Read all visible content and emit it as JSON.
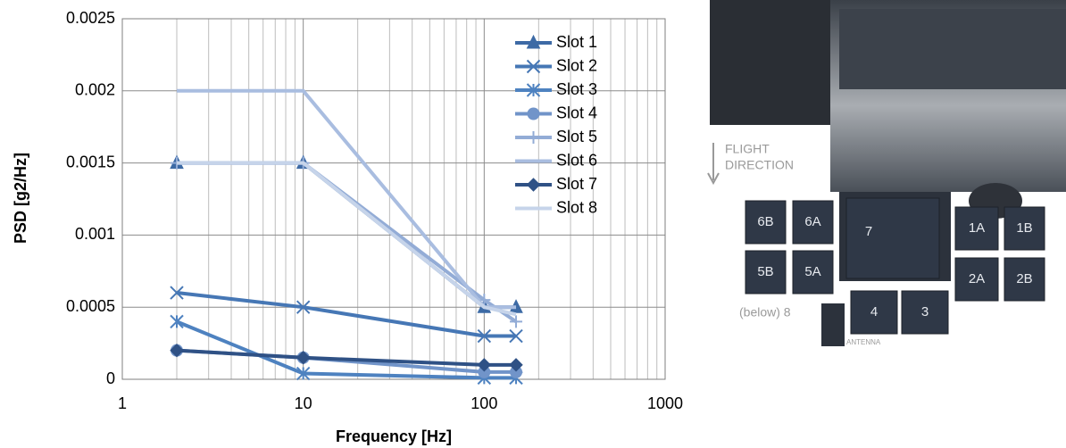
{
  "chart_data": {
    "type": "line",
    "x_label": "Frequency [Hz]",
    "y_label": "PSD [g2/Hz]",
    "x": [
      2,
      10,
      100,
      150
    ],
    "xlim": [
      1,
      1000
    ],
    "xticks": [
      1,
      10,
      100,
      1000
    ],
    "log_x": true,
    "ylim": [
      0,
      0.0025
    ],
    "yticks": [
      0,
      0.0005,
      0.001,
      0.0015,
      0.002,
      0.0025
    ],
    "grid": true,
    "legend": "top-right",
    "series": [
      {
        "name": "Slot 1",
        "color": "#3d6aa5",
        "marker": "triangle",
        "values": [
          0.0015,
          0.0015,
          0.0005,
          0.0005
        ]
      },
      {
        "name": "Slot 2",
        "color": "#4677b5",
        "marker": "x",
        "values": [
          0.0006,
          0.0005,
          0.0003,
          0.0003
        ]
      },
      {
        "name": "Slot 3",
        "color": "#4e82c0",
        "marker": "asterisk",
        "values": [
          0.0004,
          4e-05,
          1e-05,
          1e-05
        ]
      },
      {
        "name": "Slot 4",
        "color": "#7194c9",
        "marker": "circle",
        "values": [
          0.0002,
          0.00015,
          5e-05,
          5e-05
        ]
      },
      {
        "name": "Slot 5",
        "color": "#93acd6",
        "marker": "plus",
        "values": [
          0.0015,
          0.0015,
          0.00055,
          0.0004
        ]
      },
      {
        "name": "Slot 6",
        "color": "#a9bde0",
        "values": [
          0.002,
          0.002,
          0.0005,
          0.0005
        ]
      },
      {
        "name": "Slot 7",
        "color": "#2f5185",
        "marker": "diamond",
        "values": [
          0.0002,
          0.00015,
          0.0001,
          0.0001
        ]
      },
      {
        "name": "Slot 8",
        "color": "#c6d4ea",
        "values": [
          0.0015,
          0.0015,
          0.0005,
          0.00045
        ]
      }
    ]
  },
  "diagram": {
    "flight_direction": [
      "FLIGHT",
      "DIRECTION"
    ],
    "slots": [
      "6B",
      "6A",
      "7",
      "1A",
      "1B",
      "5B",
      "5A",
      "2A",
      "2B",
      "4",
      "3"
    ],
    "below": "(below) 8",
    "antenna": "ANTENNA"
  }
}
